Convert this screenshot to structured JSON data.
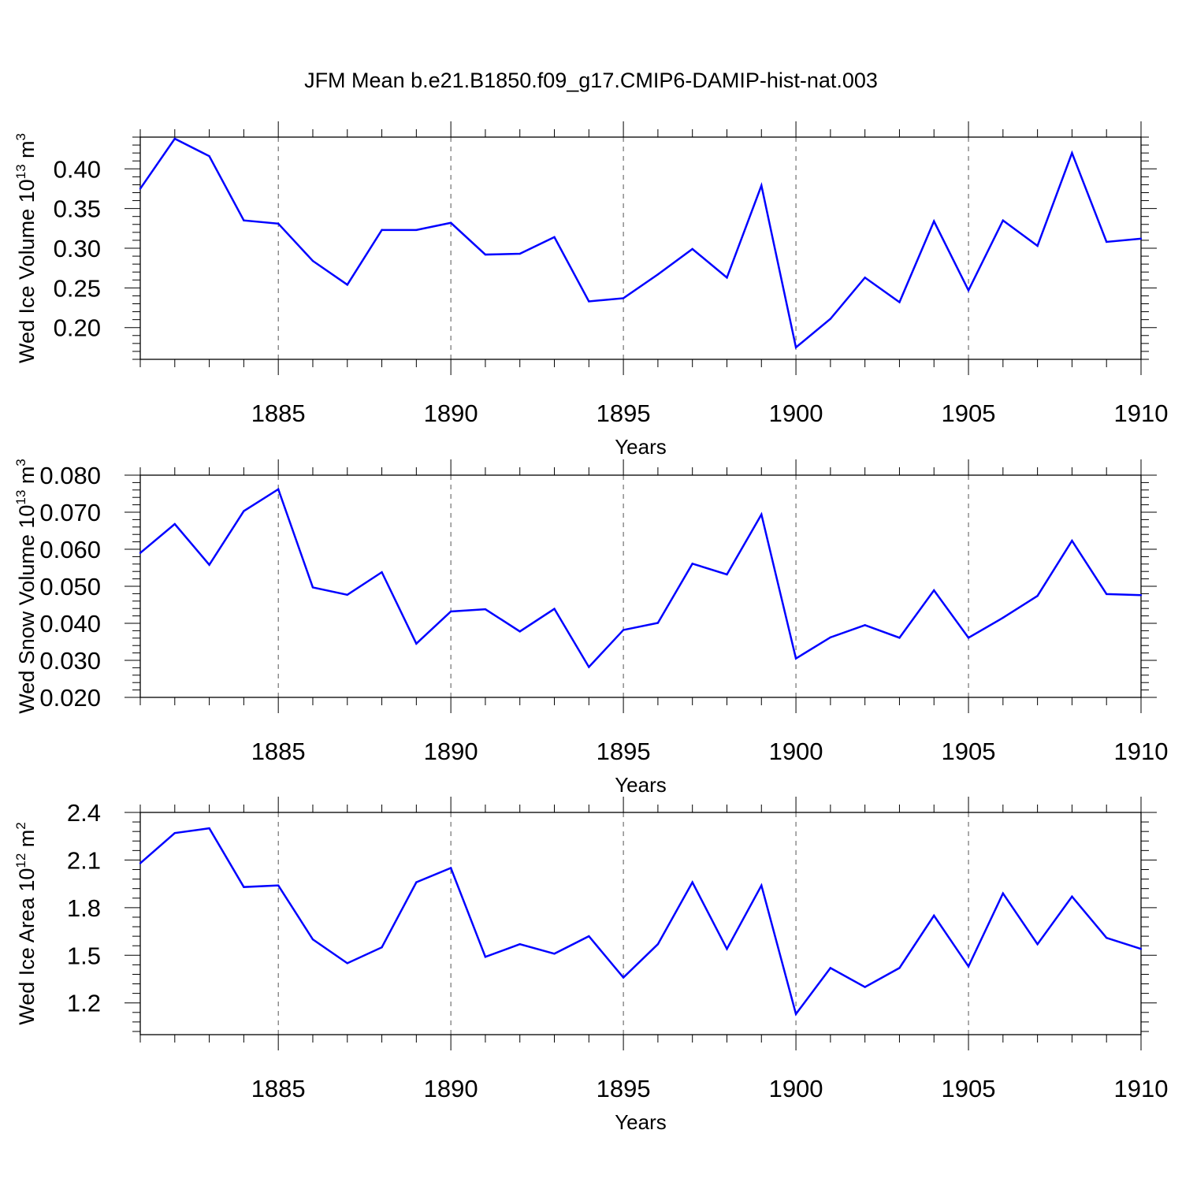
{
  "figure_title": "JFM Mean b.e21.B1850.f09_g17.CMIP6-DAMIP-hist-nat.003",
  "chart_data": [
    {
      "type": "line",
      "ylabel_main": "Wed Ice Volume 10",
      "ylabel_exp": "13",
      "ylabel_unit": " m",
      "ylabel_unit_exp": "3",
      "xlabel": "Years",
      "xlim": [
        1881,
        1910
      ],
      "ylim": [
        0.16,
        0.44
      ],
      "yticks": [
        0.2,
        0.25,
        0.3,
        0.35,
        0.4
      ],
      "ytick_labels": [
        "0.20",
        "0.25",
        "0.30",
        "0.35",
        "0.40"
      ],
      "xticks": [
        1885,
        1890,
        1895,
        1900,
        1905,
        1910
      ],
      "xtick_labels": [
        "1885",
        "1890",
        "1895",
        "1900",
        "1905",
        "1910"
      ],
      "grid": "vertical dashed at 5-year ticks",
      "line_color": "#0000ff",
      "x": [
        1881,
        1882,
        1883,
        1884,
        1885,
        1886,
        1887,
        1888,
        1889,
        1890,
        1891,
        1892,
        1893,
        1894,
        1895,
        1896,
        1897,
        1898,
        1899,
        1900,
        1901,
        1902,
        1903,
        1904,
        1905,
        1906,
        1907,
        1908,
        1909,
        1910
      ],
      "values": [
        0.375,
        0.438,
        0.416,
        0.335,
        0.331,
        0.284,
        0.254,
        0.323,
        0.323,
        0.332,
        0.292,
        0.293,
        0.314,
        0.233,
        0.237,
        0.267,
        0.299,
        0.263,
        0.379,
        0.175,
        0.211,
        0.263,
        0.232,
        0.334,
        0.247,
        0.335,
        0.303,
        0.42,
        0.308,
        0.312
      ]
    },
    {
      "type": "line",
      "ylabel_main": "Wed Snow Volume 10",
      "ylabel_exp": "13",
      "ylabel_unit": " m",
      "ylabel_unit_exp": "3",
      "xlabel": "Years",
      "xlim": [
        1881,
        1910
      ],
      "ylim": [
        0.02,
        0.08
      ],
      "yticks": [
        0.02,
        0.03,
        0.04,
        0.05,
        0.06,
        0.07,
        0.08
      ],
      "ytick_labels": [
        "0.020",
        "0.030",
        "0.040",
        "0.050",
        "0.060",
        "0.070",
        "0.080"
      ],
      "xticks": [
        1885,
        1890,
        1895,
        1900,
        1905,
        1910
      ],
      "xtick_labels": [
        "1885",
        "1890",
        "1895",
        "1900",
        "1905",
        "1910"
      ],
      "grid": "vertical dashed at 5-year ticks",
      "line_color": "#0000ff",
      "x": [
        1881,
        1882,
        1883,
        1884,
        1885,
        1886,
        1887,
        1888,
        1889,
        1890,
        1891,
        1892,
        1893,
        1894,
        1895,
        1896,
        1897,
        1898,
        1899,
        1900,
        1901,
        1902,
        1903,
        1904,
        1905,
        1906,
        1907,
        1908,
        1909,
        1910
      ],
      "values": [
        0.059,
        0.0668,
        0.0558,
        0.0703,
        0.0762,
        0.0497,
        0.0477,
        0.0538,
        0.0345,
        0.0432,
        0.0438,
        0.0378,
        0.0439,
        0.0282,
        0.0382,
        0.0401,
        0.0561,
        0.0532,
        0.0694,
        0.0305,
        0.0362,
        0.0395,
        0.0361,
        0.0489,
        0.0361,
        0.0415,
        0.0474,
        0.0623,
        0.0479,
        0.0476
      ]
    },
    {
      "type": "line",
      "ylabel_main": "Wed Ice Area 10",
      "ylabel_exp": "12",
      "ylabel_unit": " m",
      "ylabel_unit_exp": "2",
      "xlabel": "Years",
      "xlim": [
        1881,
        1910
      ],
      "ylim": [
        1.0,
        2.4
      ],
      "yticks": [
        1.2,
        1.5,
        1.8,
        2.1,
        2.4
      ],
      "ytick_labels": [
        "1.2",
        "1.5",
        "1.8",
        "2.1",
        "2.4"
      ],
      "xticks": [
        1885,
        1890,
        1895,
        1900,
        1905,
        1910
      ],
      "xtick_labels": [
        "1885",
        "1890",
        "1895",
        "1900",
        "1905",
        "1910"
      ],
      "grid": "vertical dashed at 5-year ticks",
      "line_color": "#0000ff",
      "x": [
        1881,
        1882,
        1883,
        1884,
        1885,
        1886,
        1887,
        1888,
        1889,
        1890,
        1891,
        1892,
        1893,
        1894,
        1895,
        1896,
        1897,
        1898,
        1899,
        1900,
        1901,
        1902,
        1903,
        1904,
        1905,
        1906,
        1907,
        1908,
        1909,
        1910
      ],
      "values": [
        2.08,
        2.27,
        2.3,
        1.93,
        1.94,
        1.6,
        1.45,
        1.55,
        1.96,
        2.05,
        1.49,
        1.57,
        1.51,
        1.62,
        1.36,
        1.57,
        1.96,
        1.54,
        1.94,
        1.13,
        1.42,
        1.3,
        1.42,
        1.75,
        1.43,
        1.89,
        1.57,
        1.87,
        1.61,
        1.54
      ]
    }
  ]
}
